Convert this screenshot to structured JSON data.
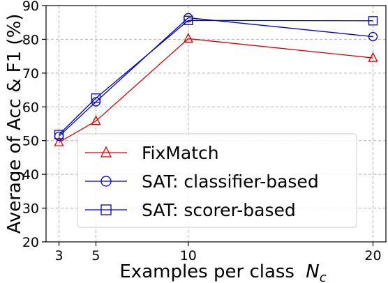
{
  "chart_data": {
    "type": "line",
    "title": "",
    "xlabel": "Examples per class",
    "xlabel_symbol": "N",
    "xlabel_subscript": "c",
    "ylabel": "Average of Acc & F1 (%)",
    "x": [
      3,
      5,
      10,
      20
    ],
    "xticks": [
      "3",
      "5",
      "10",
      "20"
    ],
    "ylim": [
      20,
      90
    ],
    "yticks": [
      "20",
      "30",
      "40",
      "50",
      "60",
      "70",
      "80",
      "90"
    ],
    "grid": true,
    "legend_position": "lower-right",
    "series": [
      {
        "name": "FixMatch",
        "values": [
          49.5,
          55.8,
          80.2,
          74.5
        ],
        "color": "#dd0000",
        "marker": "triangle"
      },
      {
        "name": "SAT: classifier-based",
        "values": [
          51.3,
          61.5,
          86.4,
          80.8
        ],
        "color": "#0000cc",
        "marker": "circle"
      },
      {
        "name": "SAT: scorer-based",
        "values": [
          51.8,
          62.6,
          85.6,
          85.5
        ],
        "color": "#0000cc",
        "marker": "square"
      }
    ]
  }
}
